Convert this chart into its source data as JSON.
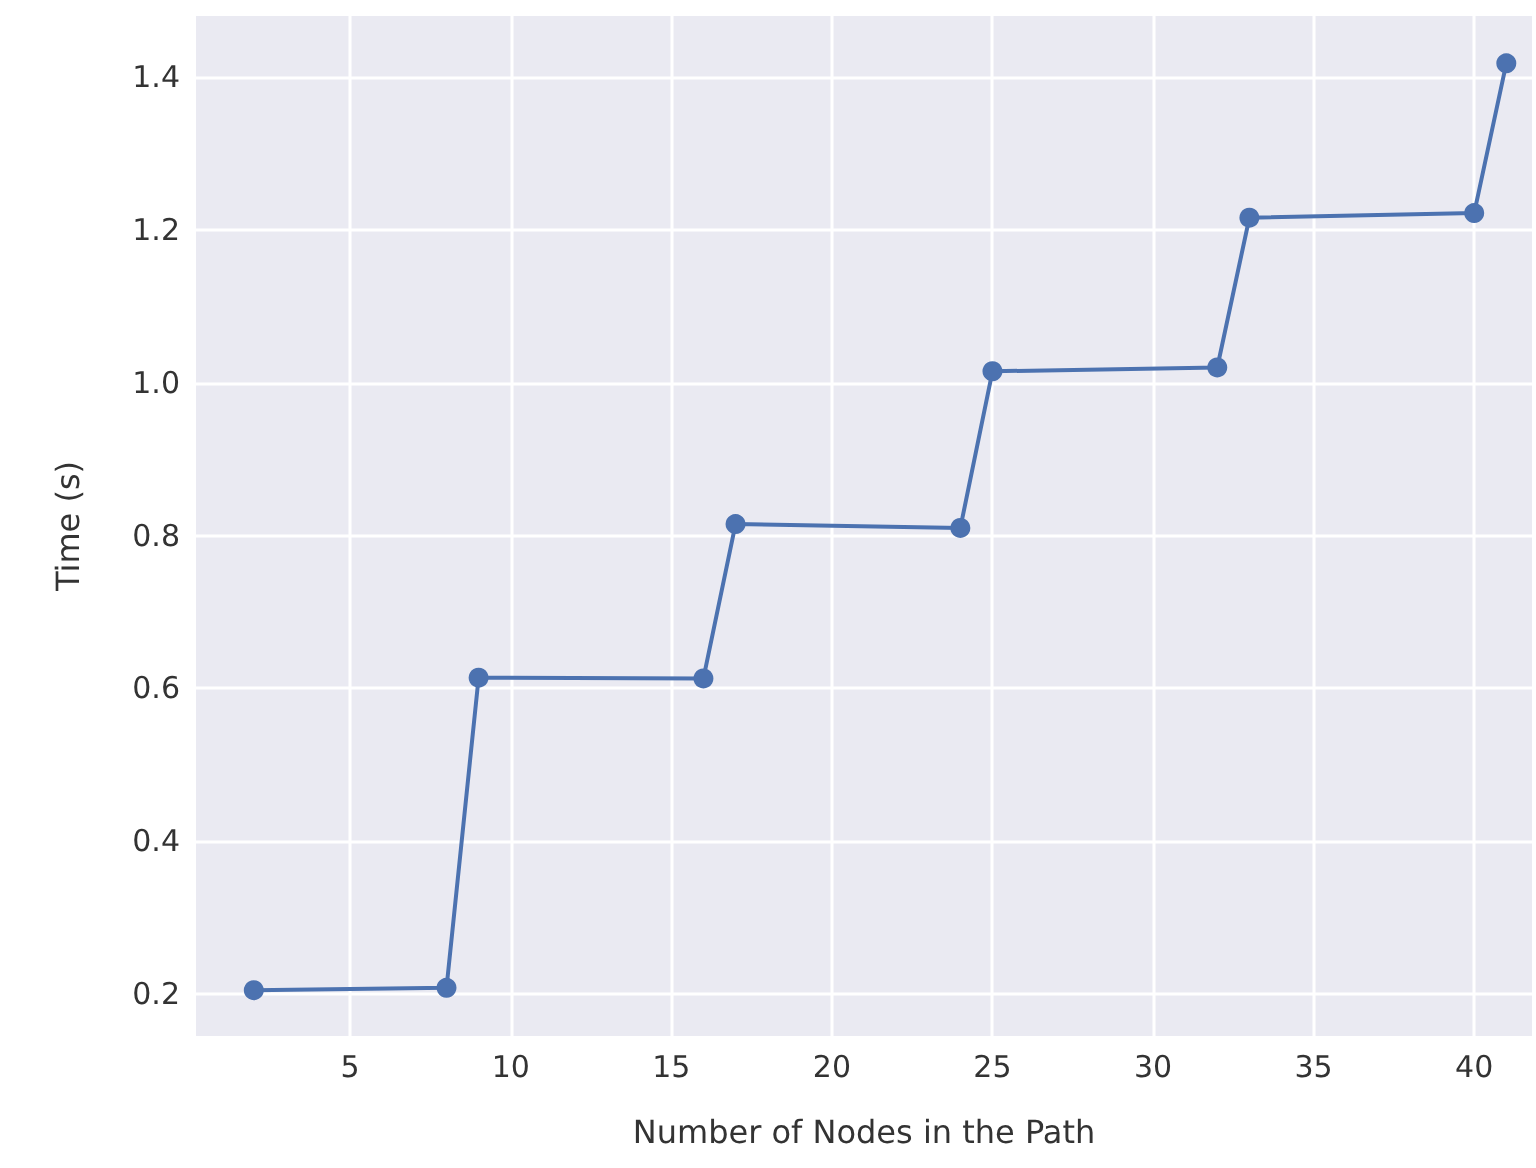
{
  "chart_data": {
    "type": "line",
    "xlabel": "Number of Nodes in the Path",
    "ylabel": "Time (s)",
    "x": [
      2,
      8,
      9,
      16,
      17,
      24,
      25,
      32,
      33,
      40,
      41
    ],
    "series": [
      {
        "color": "#4c72b0",
        "values": [
          0.205,
          0.208,
          0.614,
          0.613,
          0.815,
          0.81,
          1.015,
          1.02,
          1.216,
          1.222,
          1.418
        ]
      }
    ],
    "xlim": [
      0.2,
      41.8
    ],
    "xticks": [
      5,
      10,
      15,
      20,
      25,
      30,
      35,
      40
    ],
    "ylim": [
      0.145,
      1.48
    ],
    "yticks": [
      {
        "value": 0.2,
        "label": "0.2"
      },
      {
        "value": 0.4,
        "label": "0.4"
      },
      {
        "value": 0.6,
        "label": "0.6"
      },
      {
        "value": 0.8,
        "label": "0.8"
      },
      {
        "value": 1.0,
        "label": "1.0"
      },
      {
        "value": 1.2,
        "label": "1.2"
      },
      {
        "value": 1.4,
        "label": "1.4"
      }
    ],
    "grid": true,
    "marker": "circle",
    "line_style": "solid"
  }
}
